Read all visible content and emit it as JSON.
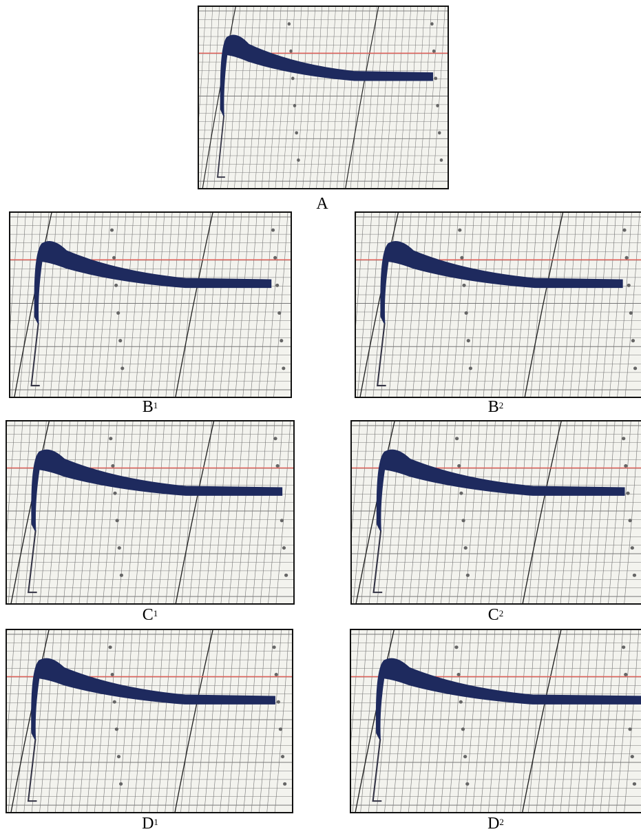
{
  "panels": [
    {
      "letter": "A"
    },
    {
      "letter": "B",
      "sup": "1"
    },
    {
      "letter": "B",
      "sup": "2"
    },
    {
      "letter": "C",
      "sup": "1"
    },
    {
      "letter": "C",
      "sup": "2"
    },
    {
      "letter": "D",
      "sup": "1"
    },
    {
      "letter": "D",
      "sup": "2"
    }
  ]
}
